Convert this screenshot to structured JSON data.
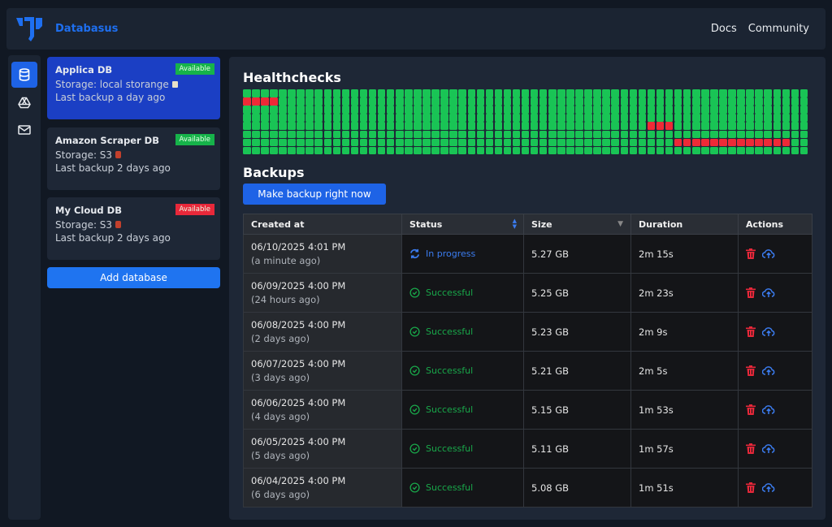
{
  "header": {
    "brand": "Databasus",
    "nav": [
      "Docs",
      "Community"
    ]
  },
  "rail": {
    "items": [
      "database-icon",
      "cloud-storage-icon",
      "mail-icon"
    ],
    "active": 0
  },
  "databases": [
    {
      "name": "Applica DB",
      "badge": "Available",
      "badge_color": "#16b34a",
      "storage": "Storage: local storange",
      "storage_icon": "disk-icon",
      "last_backup": "Last backup a day ago",
      "selected": true
    },
    {
      "name": "Amazon Scraper DB",
      "badge": "Available",
      "badge_color": "#16b34a",
      "storage": "Storage: S3",
      "storage_icon": "s3-icon",
      "last_backup": "Last backup 2 days ago",
      "selected": false
    },
    {
      "name": "My Cloud DB",
      "badge": "Available",
      "badge_color": "#e8283a",
      "storage": "Storage: S3",
      "storage_icon": "s3-icon",
      "last_backup": "Last backup 2 days ago",
      "selected": false
    }
  ],
  "add_database": "Add database",
  "healthchecks": {
    "title": "Healthchecks",
    "colors": {
      "ok": "#19c455",
      "fail": "#ee2a37"
    },
    "rows": [
      "ggggggggggggggggggggggggggggggggggggggggggggggggggggggggggggggg",
      "rrrrggggggggggggggggggggggggggggggggggggggggggggggggggggggggggg",
      "ggggggggggggggggggggggggggggggggggggggggggggggggggggggggggggggg",
      "ggggggggggggggggggggggggggggggggggggggggggggggggggggggggggggggg",
      "gggggggggggggggggggggggggggggggggggggggggggggrrrggggggggggggggg",
      "ggggggggggggggggggggggggggggggggggggggggggggggggggggggggggggggg",
      "ggggggggggggggggggggggggggggggggggggggggggggggggrrrrrrrrrrrrrgg",
      "ggggggggggggggggggggggggggggggggggggggggggggggggggggggggggggggg"
    ]
  },
  "backups": {
    "title": "Backups",
    "make_backup": "Make backup right now",
    "columns": [
      "Created at",
      "Status",
      "Size",
      "Duration",
      "Actions"
    ],
    "rows": [
      {
        "date": "06/10/2025 4:01 PM",
        "ago": "(a minute ago)",
        "status": "In progress",
        "state": "progress",
        "size": "5.27 GB",
        "duration": "2m 15s"
      },
      {
        "date": "06/09/2025 4:00 PM",
        "ago": "(24 hours ago)",
        "status": "Successful",
        "state": "ok",
        "size": "5.25 GB",
        "duration": "2m 23s"
      },
      {
        "date": "06/08/2025 4:00 PM",
        "ago": "(2 days ago)",
        "status": "Successful",
        "state": "ok",
        "size": "5.23 GB",
        "duration": "2m 9s"
      },
      {
        "date": "06/07/2025 4:00 PM",
        "ago": "(3 days ago)",
        "status": "Successful",
        "state": "ok",
        "size": "5.21 GB",
        "duration": "2m 5s"
      },
      {
        "date": "06/06/2025 4:00 PM",
        "ago": "(4 days ago)",
        "status": "Successful",
        "state": "ok",
        "size": "5.15 GB",
        "duration": "1m 53s"
      },
      {
        "date": "06/05/2025 4:00 PM",
        "ago": "(5 days ago)",
        "status": "Successful",
        "state": "ok",
        "size": "5.11 GB",
        "duration": "1m 57s"
      },
      {
        "date": "06/04/2025 4:00 PM",
        "ago": "(6 days ago)",
        "status": "Successful",
        "state": "ok",
        "size": "5.08 GB",
        "duration": "1m 51s"
      }
    ]
  }
}
